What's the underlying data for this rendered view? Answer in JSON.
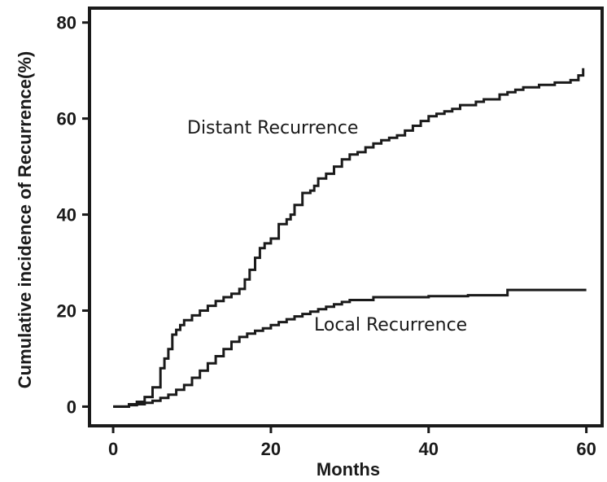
{
  "chart_data": {
    "type": "line",
    "step": true,
    "xlabel": "Months",
    "ylabel": "Cumulative incidence of Recurrence(%)",
    "xlim": [
      -3,
      62
    ],
    "ylim": [
      -4,
      83
    ],
    "xticks": [
      0,
      20,
      40,
      60
    ],
    "yticks": [
      0,
      20,
      40,
      60,
      80
    ],
    "grid": false,
    "line_color": "#1a1a1a",
    "series": [
      {
        "name": "Distant Recurrence",
        "x": [
          0,
          2,
          3,
          4,
          5,
          6,
          6.5,
          7,
          7.5,
          8,
          8.5,
          9,
          10,
          11,
          12,
          13,
          14,
          15,
          16,
          16.7,
          17.3,
          18,
          18.6,
          19.2,
          20,
          21,
          22,
          22.5,
          23,
          24,
          25,
          25.5,
          26,
          27,
          28,
          29,
          30,
          31,
          32,
          33,
          34,
          35,
          36,
          37,
          38,
          39,
          40,
          41,
          42,
          43,
          44,
          46,
          47,
          49,
          50,
          51,
          52,
          54,
          56,
          58,
          59,
          59.6
        ],
        "y": [
          0,
          0.5,
          1,
          2,
          4,
          8,
          10,
          12,
          15,
          16,
          17,
          18,
          19,
          20,
          21,
          22,
          22.8,
          23.5,
          24.5,
          26.5,
          28.5,
          31,
          33,
          34,
          35,
          38,
          39,
          40,
          42,
          44.5,
          45,
          46,
          47.5,
          48.5,
          50,
          51.5,
          52.5,
          53,
          54,
          54.8,
          55.5,
          56,
          56.5,
          57.5,
          58.5,
          59.5,
          60.5,
          61,
          61.5,
          62,
          62.8,
          63.5,
          64,
          65,
          65.5,
          66,
          66.5,
          67,
          67.5,
          68,
          69,
          70.5
        ]
      },
      {
        "name": "Local Recurrence",
        "x": [
          0,
          2,
          3,
          4,
          5,
          6,
          7,
          8,
          9,
          10,
          11,
          12,
          13,
          14,
          15,
          16,
          17,
          18,
          19,
          20,
          21,
          22,
          23,
          24,
          25,
          26,
          27,
          28,
          29,
          30,
          33,
          40,
          45,
          50,
          60
        ],
        "y": [
          0,
          0.3,
          0.5,
          0.8,
          1.2,
          1.8,
          2.5,
          3.5,
          4.5,
          6,
          7.5,
          9,
          10.5,
          12,
          13.5,
          14.5,
          15.2,
          15.8,
          16.3,
          17,
          17.6,
          18.2,
          18.8,
          19.3,
          19.8,
          20.3,
          20.8,
          21.3,
          21.8,
          22.2,
          22.8,
          23,
          23.2,
          24.3,
          24.3
        ]
      }
    ]
  }
}
